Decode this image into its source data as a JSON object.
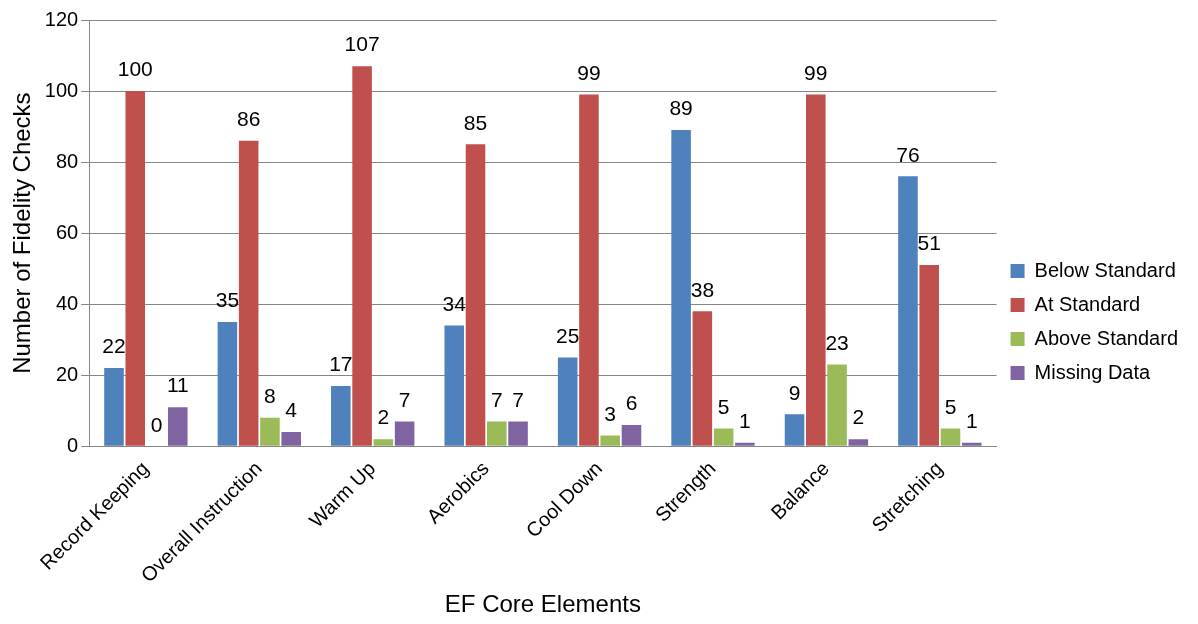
{
  "chart_data": {
    "type": "bar",
    "xlabel": "EF Core Elements",
    "ylabel": "Number of Fidelity Checks",
    "categories": [
      "Record Keeping",
      "Overall Instruction",
      "Warm Up",
      "Aerobics",
      "Cool Down",
      "Strength",
      "Balance",
      "Stretching"
    ],
    "series": [
      {
        "name": "Below Standard",
        "color": "#4f81bd",
        "values": [
          22,
          35,
          17,
          34,
          25,
          89,
          9,
          76
        ]
      },
      {
        "name": "At Standard",
        "color": "#c0504d",
        "values": [
          100,
          86,
          107,
          85,
          99,
          38,
          99,
          51
        ]
      },
      {
        "name": "Above Standard",
        "color": "#9bbb59",
        "values": [
          0,
          8,
          2,
          7,
          3,
          5,
          23,
          5
        ]
      },
      {
        "name": "Missing Data",
        "color": "#8064a2",
        "values": [
          11,
          4,
          7,
          7,
          6,
          1,
          2,
          1
        ]
      }
    ],
    "ylim": [
      0,
      120
    ],
    "yticks": [
      0,
      20,
      40,
      60,
      80,
      100,
      120
    ],
    "grid": "y",
    "legend": "right",
    "data_labels": true
  }
}
